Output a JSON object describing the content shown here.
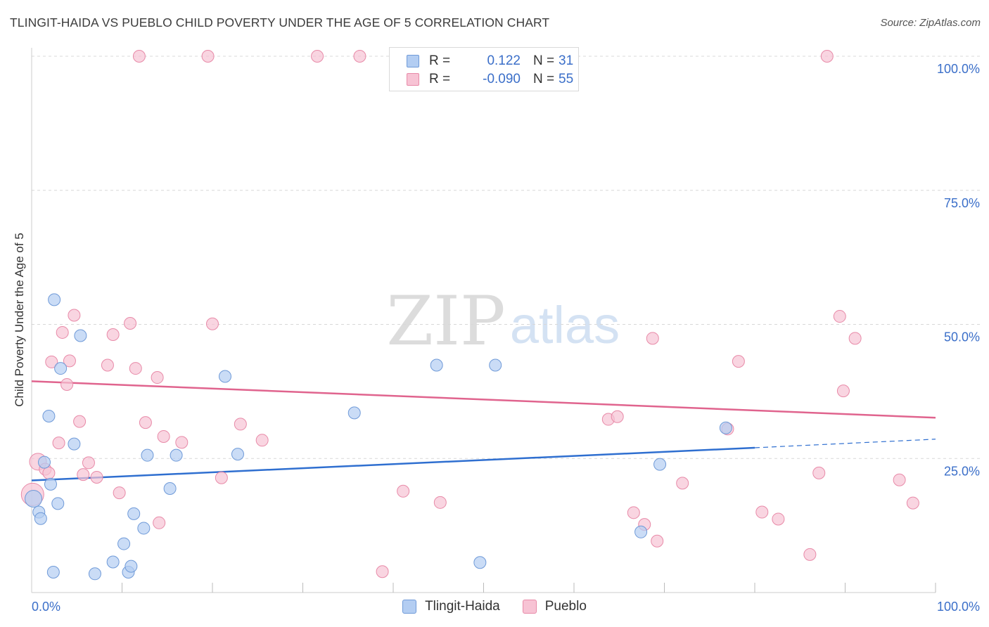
{
  "header": {
    "title": "TLINGIT-HAIDA VS PUEBLO CHILD POVERTY UNDER THE AGE OF 5 CORRELATION CHART",
    "source": "Source: ZipAtlas.com"
  },
  "watermark": {
    "zip": "ZIP",
    "atlas": "atlas"
  },
  "legend": {
    "rows": [
      {
        "r_label": "R =",
        "r_value": "0.122",
        "n_label": "N =",
        "n_value": "31",
        "fill": "#b3cdf2",
        "stroke": "#6f9ad8"
      },
      {
        "r_label": "R =",
        "r_value": "-0.090",
        "n_label": "N =",
        "n_value": "55",
        "fill": "#f7c3d4",
        "stroke": "#e88aa8"
      }
    ]
  },
  "bottom_legend": [
    {
      "label": "Tlingit-Haida",
      "fill": "#b3cdf2",
      "stroke": "#6f9ad8"
    },
    {
      "label": "Pueblo",
      "fill": "#f7c3d4",
      "stroke": "#e88aa8"
    }
  ],
  "colors": {
    "blue_fill": "#b3cdf2",
    "blue_stroke": "#6f9ad8",
    "blue_line": "#2f6fd0",
    "pink_fill": "#f7c3d4",
    "pink_stroke": "#e88aa8",
    "pink_line": "#e0648e",
    "axis_text": "#3b6fc9",
    "grid": "#d8d8d8"
  },
  "chart_data": {
    "type": "scatter",
    "title": "TLINGIT-HAIDA VS PUEBLO CHILD POVERTY UNDER THE AGE OF 5 CORRELATION CHART",
    "xlabel": "",
    "ylabel": "Child Poverty Under the Age of 5",
    "xlim": [
      0,
      100
    ],
    "ylim": [
      0,
      100
    ],
    "x_tick_labels": [
      "0.0%",
      "100.0%"
    ],
    "y_ticks": [
      25,
      50,
      75,
      100
    ],
    "y_tick_labels": [
      "25.0%",
      "50.0%",
      "75.0%",
      "100.0%"
    ],
    "grid": true,
    "series": [
      {
        "name": "Tlingit-Haida",
        "r": 0.122,
        "n": 31,
        "trend": {
          "x_start": 0,
          "y_start": 20.9,
          "x_solid_end": 80,
          "y_solid_end": 27.0,
          "x_end": 100,
          "y_end": 28.6
        },
        "points": [
          [
            0.2,
            17.5,
            2
          ],
          [
            0.8,
            15.0,
            1
          ],
          [
            1.0,
            13.8,
            1
          ],
          [
            1.4,
            24.3,
            1
          ],
          [
            1.9,
            32.9,
            1
          ],
          [
            2.1,
            20.2,
            1
          ],
          [
            2.4,
            3.8,
            1
          ],
          [
            2.5,
            54.6,
            1
          ],
          [
            2.9,
            16.6,
            1
          ],
          [
            3.2,
            41.8,
            1
          ],
          [
            4.7,
            27.7,
            1
          ],
          [
            5.4,
            47.9,
            1
          ],
          [
            7.0,
            3.5,
            1
          ],
          [
            9.0,
            5.7,
            1
          ],
          [
            10.2,
            9.1,
            1
          ],
          [
            10.7,
            3.8,
            1
          ],
          [
            11.0,
            4.9,
            1
          ],
          [
            11.3,
            14.7,
            1
          ],
          [
            12.4,
            12.0,
            1
          ],
          [
            12.8,
            25.6,
            1
          ],
          [
            15.3,
            19.4,
            1
          ],
          [
            16.0,
            25.6,
            1
          ],
          [
            21.4,
            40.3,
            1
          ],
          [
            22.8,
            25.8,
            1
          ],
          [
            35.7,
            33.5,
            1
          ],
          [
            44.8,
            42.4,
            1
          ],
          [
            49.6,
            5.6,
            1
          ],
          [
            51.3,
            42.4,
            1
          ],
          [
            67.4,
            11.3,
            1
          ],
          [
            69.5,
            23.9,
            1
          ],
          [
            76.8,
            30.7,
            1
          ]
        ]
      },
      {
        "name": "Pueblo",
        "r": -0.09,
        "n": 55,
        "trend": {
          "x_start": 0,
          "y_start": 39.4,
          "x_end": 100,
          "y_end": 32.6
        },
        "points": [
          [
            0.1,
            18.3,
            3
          ],
          [
            0.7,
            24.4,
            2
          ],
          [
            1.5,
            23.0,
            1
          ],
          [
            1.9,
            22.3,
            1
          ],
          [
            2.2,
            43.0,
            1
          ],
          [
            3.0,
            27.9,
            1
          ],
          [
            3.4,
            48.5,
            1
          ],
          [
            3.9,
            38.8,
            1
          ],
          [
            4.2,
            43.2,
            1
          ],
          [
            4.7,
            51.7,
            1
          ],
          [
            5.3,
            31.9,
            1
          ],
          [
            5.7,
            22.0,
            1
          ],
          [
            6.3,
            24.2,
            1
          ],
          [
            7.2,
            21.5,
            1
          ],
          [
            8.4,
            42.4,
            1
          ],
          [
            9.0,
            48.1,
            1
          ],
          [
            9.7,
            18.6,
            1
          ],
          [
            10.9,
            50.2,
            1
          ],
          [
            11.5,
            41.8,
            1
          ],
          [
            11.9,
            100.0,
            1
          ],
          [
            12.6,
            31.7,
            1
          ],
          [
            13.9,
            40.1,
            1
          ],
          [
            14.1,
            13.0,
            1
          ],
          [
            14.6,
            29.1,
            1
          ],
          [
            16.6,
            28.0,
            1
          ],
          [
            19.5,
            100.0,
            1
          ],
          [
            20.0,
            50.1,
            1
          ],
          [
            21.0,
            21.4,
            1
          ],
          [
            23.1,
            31.4,
            1
          ],
          [
            25.5,
            28.4,
            1
          ],
          [
            31.6,
            100.0,
            1
          ],
          [
            36.3,
            100.0,
            1
          ],
          [
            38.8,
            3.9,
            1
          ],
          [
            41.1,
            18.9,
            1
          ],
          [
            45.2,
            16.8,
            1
          ],
          [
            63.8,
            32.3,
            1
          ],
          [
            64.8,
            32.8,
            1
          ],
          [
            66.6,
            14.9,
            1
          ],
          [
            67.8,
            12.7,
            1
          ],
          [
            68.7,
            47.4,
            1
          ],
          [
            69.2,
            9.6,
            1
          ],
          [
            72.0,
            20.4,
            1
          ],
          [
            77.0,
            30.5,
            1
          ],
          [
            78.2,
            43.1,
            1
          ],
          [
            80.8,
            15.0,
            1
          ],
          [
            82.6,
            13.7,
            1
          ],
          [
            86.1,
            7.1,
            1
          ],
          [
            87.1,
            22.3,
            1
          ],
          [
            88.0,
            100.0,
            1
          ],
          [
            89.4,
            51.5,
            1
          ],
          [
            89.8,
            37.6,
            1
          ],
          [
            91.1,
            47.4,
            1
          ],
          [
            96.0,
            21.0,
            1
          ],
          [
            97.5,
            16.7,
            1
          ]
        ]
      }
    ]
  }
}
